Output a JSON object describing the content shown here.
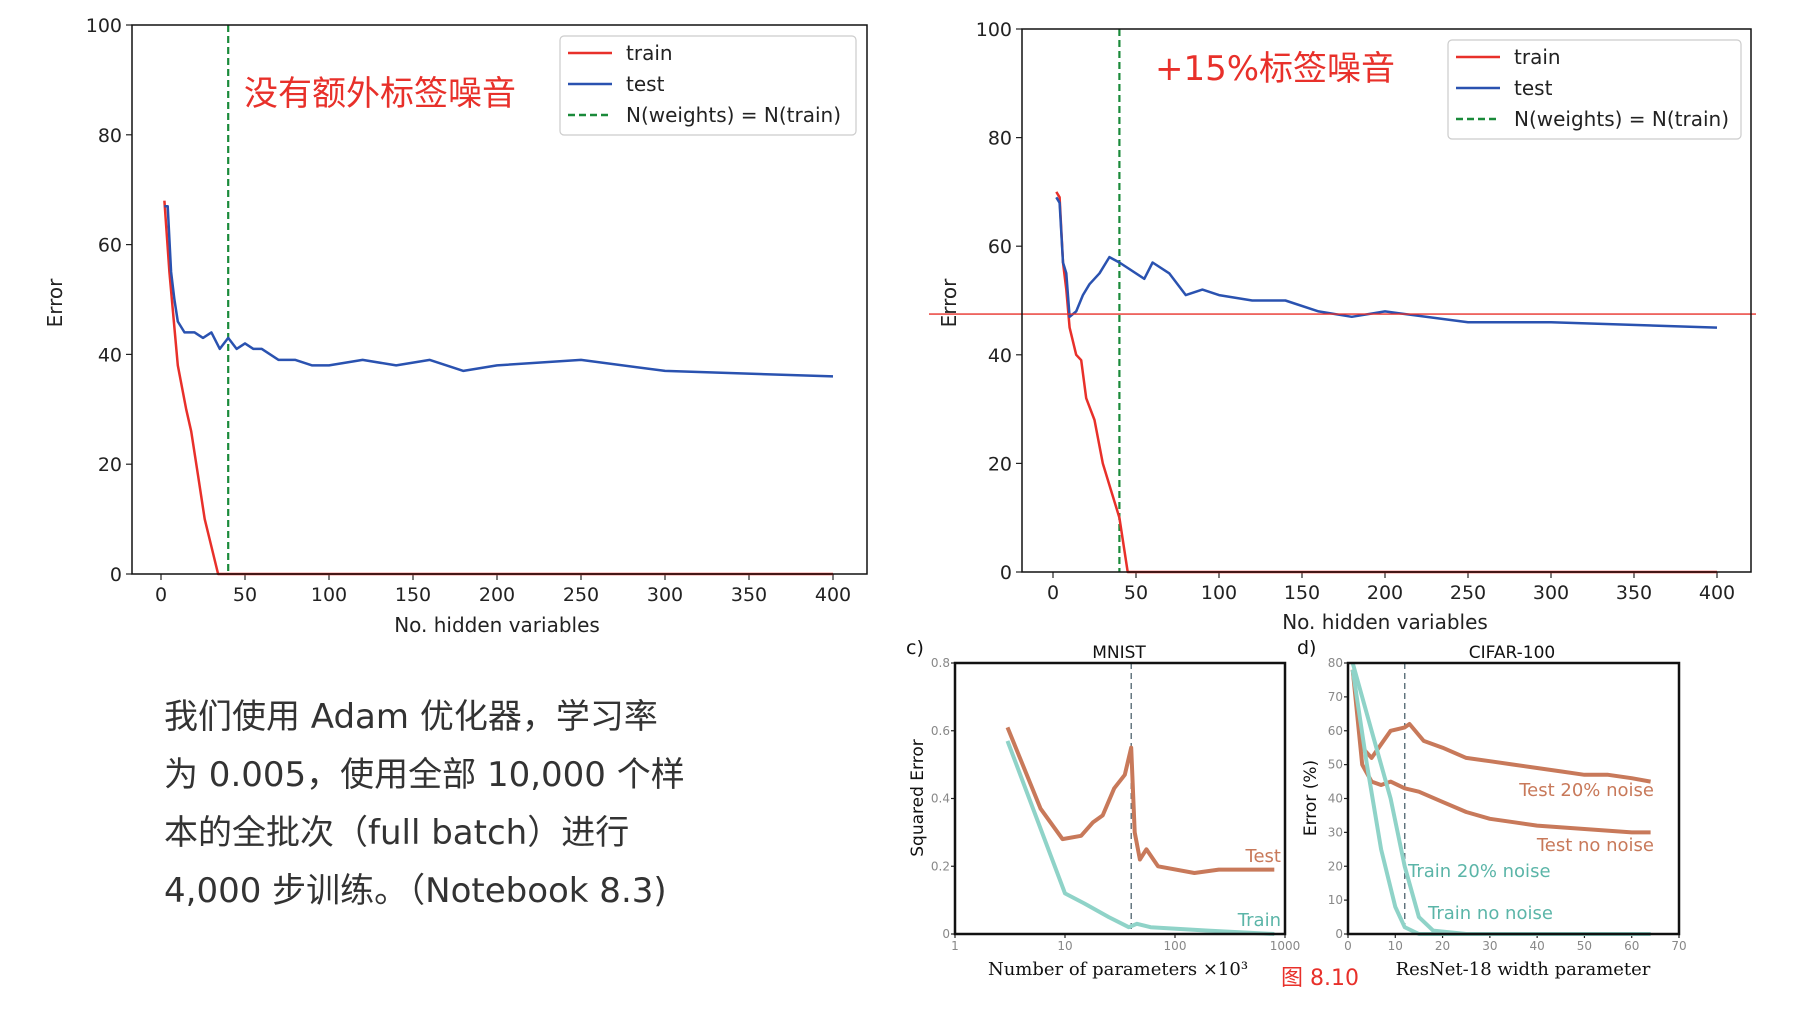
{
  "paragraph": {
    "lines": [
      "我们使用 Adam 优化器，学习率",
      "为 0.005，使用全部 10,000 个样",
      "本的全批次（full batch）进行",
      "4,000 步训练。（Notebook 8.3)"
    ]
  },
  "figure_caption": "图 8.10",
  "chart_data": [
    {
      "type": "line",
      "annotation": "没有额外标签噪音",
      "xlabel": "No. hidden variables",
      "ylabel": "Error",
      "xlim": [
        0,
        400
      ],
      "ylim": [
        0,
        100
      ],
      "xticks": [
        0,
        50,
        100,
        150,
        200,
        250,
        300,
        350,
        400
      ],
      "yticks": [
        0,
        20,
        40,
        60,
        80,
        100
      ],
      "legend": "top-right",
      "legend_entries": [
        "train",
        "test",
        "N(weights) = N(train)"
      ],
      "vline": 40,
      "series": [
        {
          "name": "train",
          "color": "#e8302a",
          "points": [
            [
              2,
              68
            ],
            [
              5,
              55
            ],
            [
              10,
              38
            ],
            [
              15,
              30
            ],
            [
              18,
              26
            ],
            [
              22,
              18
            ],
            [
              26,
              10
            ],
            [
              30,
              5
            ],
            [
              34,
              0
            ],
            [
              400,
              0
            ]
          ]
        },
        {
          "name": "test",
          "color": "#2a52b0",
          "points": [
            [
              2,
              67
            ],
            [
              4,
              67
            ],
            [
              6,
              55
            ],
            [
              8,
              50
            ],
            [
              10,
              46
            ],
            [
              14,
              44
            ],
            [
              20,
              44
            ],
            [
              25,
              43
            ],
            [
              30,
              44
            ],
            [
              35,
              41
            ],
            [
              40,
              43
            ],
            [
              45,
              41
            ],
            [
              50,
              42
            ],
            [
              55,
              41
            ],
            [
              60,
              41
            ],
            [
              70,
              39
            ],
            [
              80,
              39
            ],
            [
              90,
              38
            ],
            [
              100,
              38
            ],
            [
              120,
              39
            ],
            [
              140,
              38
            ],
            [
              160,
              39
            ],
            [
              180,
              37
            ],
            [
              200,
              38
            ],
            [
              250,
              39
            ],
            [
              300,
              37
            ],
            [
              400,
              36
            ]
          ]
        }
      ]
    },
    {
      "type": "line",
      "annotation": "+15%标签噪音",
      "xlabel": "No. hidden variables",
      "ylabel": "Error",
      "xlim": [
        0,
        400
      ],
      "ylim": [
        0,
        100
      ],
      "xticks": [
        0,
        50,
        100,
        150,
        200,
        250,
        300,
        350,
        400
      ],
      "yticks": [
        0,
        20,
        40,
        60,
        80,
        100
      ],
      "legend": "top-right",
      "legend_entries": [
        "train",
        "test",
        "N(weights) = N(train)"
      ],
      "vline": 40,
      "hline": 47.5,
      "series": [
        {
          "name": "train",
          "color": "#e8302a",
          "points": [
            [
              2,
              70
            ],
            [
              4,
              69
            ],
            [
              6,
              57
            ],
            [
              8,
              52
            ],
            [
              10,
              45
            ],
            [
              14,
              40
            ],
            [
              17,
              39
            ],
            [
              20,
              32
            ],
            [
              25,
              28
            ],
            [
              30,
              20
            ],
            [
              35,
              15
            ],
            [
              40,
              10
            ],
            [
              45,
              0
            ],
            [
              400,
              0
            ]
          ]
        },
        {
          "name": "test",
          "color": "#2a52b0",
          "points": [
            [
              2,
              69
            ],
            [
              4,
              68
            ],
            [
              6,
              57
            ],
            [
              8,
              55
            ],
            [
              10,
              47
            ],
            [
              14,
              48
            ],
            [
              18,
              51
            ],
            [
              22,
              53
            ],
            [
              28,
              55
            ],
            [
              34,
              58
            ],
            [
              40,
              57
            ],
            [
              55,
              54
            ],
            [
              60,
              57
            ],
            [
              70,
              55
            ],
            [
              80,
              51
            ],
            [
              90,
              52
            ],
            [
              100,
              51
            ],
            [
              120,
              50
            ],
            [
              140,
              50
            ],
            [
              160,
              48
            ],
            [
              180,
              47
            ],
            [
              200,
              48
            ],
            [
              250,
              46
            ],
            [
              300,
              46
            ],
            [
              400,
              45
            ]
          ]
        }
      ]
    },
    {
      "type": "line",
      "panel": "c)",
      "title": "MNIST",
      "xlabel": "Number of parameters ×10³",
      "ylabel": "Squared Error",
      "xscale": "log",
      "xlim": [
        1,
        1000
      ],
      "ylim": [
        0,
        0.8
      ],
      "xticks": [
        1,
        10,
        100,
        1000
      ],
      "yticks": [
        0,
        0.2,
        0.4,
        0.6,
        0.8
      ],
      "ytick_labels": [
        "0",
        "0.2",
        "0.4",
        "0.6",
        "0.8"
      ],
      "vline": 40,
      "series": [
        {
          "name": "Test",
          "color": "#c8795a",
          "points": [
            [
              3,
              0.61
            ],
            [
              6,
              0.37
            ],
            [
              9.5,
              0.28
            ],
            [
              14,
              0.29
            ],
            [
              18,
              0.33
            ],
            [
              22,
              0.35
            ],
            [
              28,
              0.43
            ],
            [
              35,
              0.47
            ],
            [
              40,
              0.55
            ],
            [
              43,
              0.3
            ],
            [
              48,
              0.22
            ],
            [
              55,
              0.25
            ],
            [
              70,
              0.2
            ],
            [
              150,
              0.18
            ],
            [
              250,
              0.19
            ],
            [
              800,
              0.19
            ]
          ]
        },
        {
          "name": "Train",
          "color": "#8fd3c8",
          "points": [
            [
              3,
              0.57
            ],
            [
              10,
              0.12
            ],
            [
              15,
              0.09
            ],
            [
              25,
              0.05
            ],
            [
              38,
              0.02
            ],
            [
              45,
              0.03
            ],
            [
              60,
              0.02
            ],
            [
              200,
              0.01
            ],
            [
              800,
              0
            ]
          ]
        }
      ]
    },
    {
      "type": "line",
      "panel": "d)",
      "title": "CIFAR-100",
      "xlabel": "ResNet-18 width parameter",
      "ylabel": "Error (%)",
      "xlim": [
        0,
        70
      ],
      "ylim": [
        0,
        80
      ],
      "xticks": [
        0,
        10,
        20,
        30,
        40,
        50,
        60,
        70
      ],
      "yticks": [
        0,
        10,
        20,
        30,
        40,
        50,
        60,
        70,
        80
      ],
      "vline": 12,
      "series": [
        {
          "name": "Test 20% noise",
          "color": "#c8795a",
          "points": [
            [
              1,
              78
            ],
            [
              3,
              55
            ],
            [
              5,
              52
            ],
            [
              7,
              56
            ],
            [
              9,
              60
            ],
            [
              12,
              61
            ],
            [
              13,
              62
            ],
            [
              16,
              57
            ],
            [
              20,
              55
            ],
            [
              25,
              52
            ],
            [
              30,
              51
            ],
            [
              35,
              50
            ],
            [
              40,
              49
            ],
            [
              45,
              48
            ],
            [
              50,
              47
            ],
            [
              55,
              47
            ],
            [
              60,
              46
            ],
            [
              64,
              45
            ]
          ]
        },
        {
          "name": "Test no noise",
          "color": "#c8795a",
          "points": [
            [
              1,
              78
            ],
            [
              3,
              50
            ],
            [
              5,
              45
            ],
            [
              7,
              44
            ],
            [
              9,
              45
            ],
            [
              12,
              43
            ],
            [
              15,
              42
            ],
            [
              20,
              39
            ],
            [
              25,
              36
            ],
            [
              30,
              34
            ],
            [
              35,
              33
            ],
            [
              40,
              32
            ],
            [
              50,
              31
            ],
            [
              60,
              30
            ],
            [
              64,
              30
            ]
          ]
        },
        {
          "name": "Train 20% noise",
          "color": "#8fd3c8",
          "points": [
            [
              1,
              80
            ],
            [
              5,
              60
            ],
            [
              9,
              40
            ],
            [
              12,
              20
            ],
            [
              15,
              5
            ],
            [
              18,
              1
            ],
            [
              25,
              0
            ],
            [
              64,
              0
            ]
          ]
        },
        {
          "name": "Train no noise",
          "color": "#8fd3c8",
          "points": [
            [
              1,
              78
            ],
            [
              4,
              50
            ],
            [
              7,
              25
            ],
            [
              10,
              8
            ],
            [
              12,
              2
            ],
            [
              15,
              0
            ],
            [
              64,
              0
            ]
          ]
        }
      ]
    }
  ],
  "colors": {
    "annotation": "#e8302a",
    "vline": "#1a8a3a",
    "caption": "#e8302a",
    "text": "#333333"
  }
}
